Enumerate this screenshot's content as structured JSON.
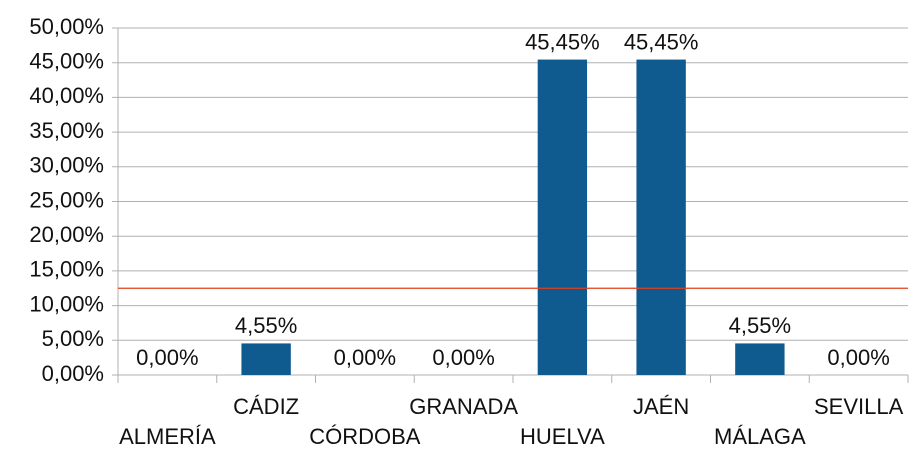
{
  "chart_data": {
    "type": "bar",
    "categories": [
      "ALMERÍA",
      "CÁDIZ",
      "CÓRDOBA",
      "GRANADA",
      "HUELVA",
      "JAÉN",
      "MÁLAGA",
      "SEVILLA"
    ],
    "values": [
      0,
      4.55,
      0,
      0,
      45.45,
      45.45,
      4.55,
      0
    ],
    "value_labels": [
      "0,00%",
      "4,55%",
      "0,00%",
      "0,00%",
      "45,45%",
      "45,45%",
      "4,55%",
      "0,00%"
    ],
    "color": "#0f5a8e",
    "ylim": [
      0,
      50
    ],
    "yticks": [
      {
        "value": 0,
        "label": "0,00%"
      },
      {
        "value": 5,
        "label": "5,00%"
      },
      {
        "value": 10,
        "label": "10,00%"
      },
      {
        "value": 15,
        "label": "15,00%"
      },
      {
        "value": 20,
        "label": "20,00%"
      },
      {
        "value": 25,
        "label": "25,00%"
      },
      {
        "value": 30,
        "label": "30,00%"
      },
      {
        "value": 35,
        "label": "35,00%"
      },
      {
        "value": 40,
        "label": "40,00%"
      },
      {
        "value": 45,
        "label": "45,00%"
      },
      {
        "value": 50,
        "label": "50,00%"
      }
    ],
    "grid": true,
    "reference_line": {
      "value": 12.5,
      "color": "#e0401c"
    }
  }
}
